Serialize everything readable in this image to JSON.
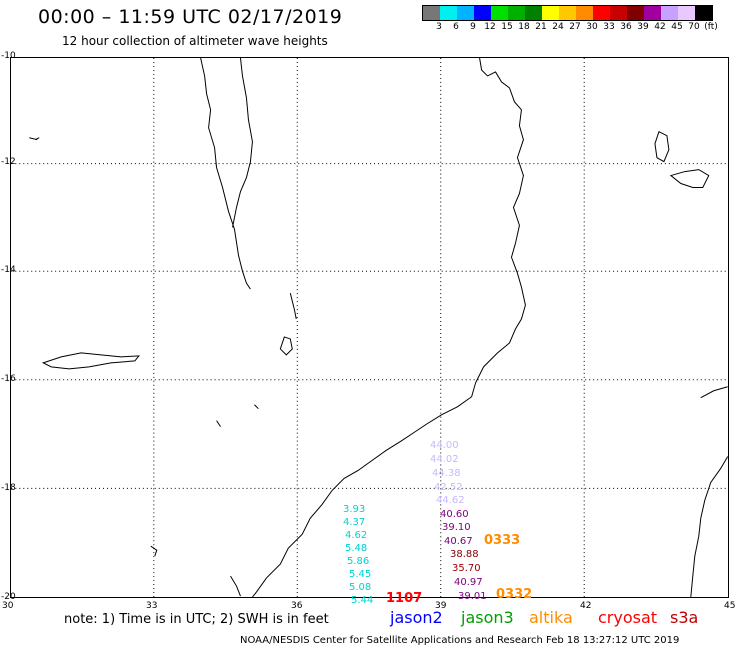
{
  "header": {
    "title": "00:00 – 11:59 UTC 02/17/2019",
    "subtitle": "12 hour collection of altimeter wave heights"
  },
  "color_scale": {
    "colors": [
      "#777777",
      "#00f0f0",
      "#00b4ff",
      "#0000ff",
      "#00e000",
      "#00b000",
      "#008000",
      "#ffff00",
      "#ffc800",
      "#ff8c00",
      "#ff0000",
      "#c80000",
      "#800000",
      "#a000a0",
      "#c8a0ff",
      "#e8c8ff",
      "#000000"
    ],
    "labels": [
      "3",
      "6",
      "9",
      "12",
      "15",
      "18",
      "21",
      "24",
      "27",
      "30",
      "33",
      "36",
      "39",
      "42",
      "45",
      "70",
      "(ft)"
    ]
  },
  "map": {
    "lon_labels": [
      "30",
      "33",
      "36",
      "39",
      "42",
      "45"
    ],
    "lat_labels": [
      "-10",
      "-12",
      "-14",
      "-16",
      "-18",
      "-20"
    ],
    "observations": [
      {
        "text": "44.00",
        "color": "#c8b8ff"
      },
      {
        "text": "44.02",
        "color": "#c8b8ff"
      },
      {
        "text": "44.38",
        "color": "#c8b8ff"
      },
      {
        "text": "42.52",
        "color": "#c8b8ff"
      },
      {
        "text": "44.62",
        "color": "#c8b8ff"
      },
      {
        "text": "40.60",
        "color": "#800080"
      },
      {
        "text": "39.10",
        "color": "#800080"
      },
      {
        "text": "40.67",
        "color": "#800080"
      },
      {
        "text": "38.88",
        "color": "#800000"
      },
      {
        "text": "35.70",
        "color": "#a00000"
      },
      {
        "text": "40.97",
        "color": "#800080"
      },
      {
        "text": "39.01",
        "color": "#800080"
      },
      {
        "text": "3.93",
        "color": "#00d0d0"
      },
      {
        "text": "4.37",
        "color": "#00d0d0"
      },
      {
        "text": "4.62",
        "color": "#00d0d0"
      },
      {
        "text": "5.48",
        "color": "#00d0d0"
      },
      {
        "text": "5.86",
        "color": "#00d0d0"
      },
      {
        "text": "5.45",
        "color": "#00d0d0"
      },
      {
        "text": "5.08",
        "color": "#00d0d0"
      },
      {
        "text": "5.44",
        "color": "#00d0d0"
      }
    ],
    "time_labels": [
      {
        "text": "0333",
        "color": "#ff8c00"
      },
      {
        "text": "0332",
        "color": "#ff8c00"
      },
      {
        "text": "1107",
        "color": "#ff0000"
      }
    ]
  },
  "legend": {
    "note": "note: 1) Time is in UTC; 2) SWH is in feet",
    "satellites": [
      {
        "name": "jason2",
        "color": "#0000ff"
      },
      {
        "name": "jason3",
        "color": "#00a000"
      },
      {
        "name": "altika",
        "color": "#ff8c00"
      },
      {
        "name": "cryosat",
        "color": "#ff0000"
      },
      {
        "name": "s3a",
        "color": "#c00000"
      }
    ]
  },
  "footer": "NOAA/NESDIS Center for Satellite Applications and Research   Feb 18 13:27:12 UTC 2019"
}
